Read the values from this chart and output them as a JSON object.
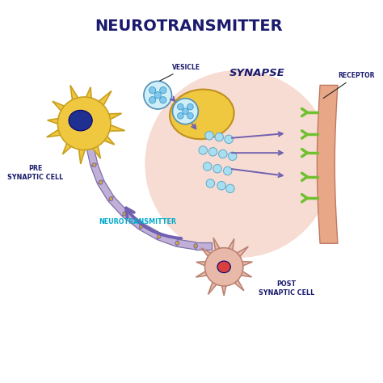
{
  "title": "NEUROTRANSMITTER",
  "title_color": "#1a1a6e",
  "title_fontsize": 14,
  "bg_color": "#ffffff",
  "synapse_label": "SYNAPSE",
  "vesicle_label": "VESICLE",
  "receptor_label": "RECEPTOR",
  "pre_label": "PRE\nSYNAPTIC CELL",
  "post_label": "POST\nSYNAPTIC CELL",
  "neuro_label": "NEUROTRANSMITTER",
  "label_color": "#1a1a6e",
  "neuro_label_color": "#00aacc",
  "synapse_circle_color": "#f2c0b0",
  "synapse_circle_alpha": 0.55,
  "axon_color": "#c0b0d8",
  "axon_border": "#8070a8",
  "node_color": "#d4a830",
  "neuron_body_color": "#f0c840",
  "neuron_body_border": "#c8a020",
  "nucleus_color": "#203090",
  "vesicle_fill_color": "#d0eef8",
  "vesicle_border_color": "#5090b8",
  "vesicle_dot_color": "#80c8f0",
  "receptor_color": "#70c030",
  "receptor_border": "#408820",
  "wall_color": "#e8a888",
  "wall_border": "#c07860",
  "arrow_color": "#7060b0",
  "free_dot_color": "#a8dff0",
  "free_dot_border": "#60a8c8",
  "post_neuron_color": "#e8b8a8",
  "post_neuron_border": "#b88070",
  "post_nucleus_color": "#d84040",
  "terminal_color": "#f0c840",
  "terminal_border": "#c09020"
}
